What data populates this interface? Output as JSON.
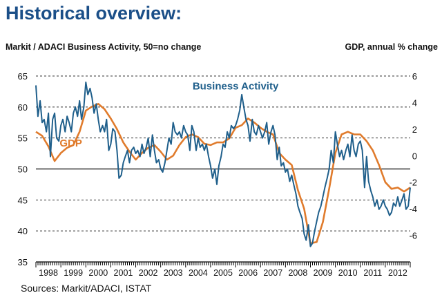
{
  "title": "Historical overview:",
  "left_axis_caption": "Markit / ADACI  Business Activity, 50=no change",
  "right_axis_caption": "GDP, annual % change",
  "source": "Sources: Markit/ADACI, ISTAT",
  "colors": {
    "business_activity": "#1f5f8b",
    "gdp": "#e07b2c",
    "title": "#1b4f88",
    "grid": "#333333"
  },
  "chart_data": {
    "type": "line",
    "title": "Historical overview:",
    "x_range": [
      1998.0,
      2013.0
    ],
    "x_ticks": [
      "1998",
      "1999",
      "2000",
      "2001",
      "2002",
      "2003",
      "2004",
      "2005",
      "2006",
      "2007",
      "2008",
      "2009",
      "2010",
      "2011",
      "2012"
    ],
    "left_axis": {
      "label": "Markit / ADACI  Business Activity, 50=no change",
      "range": [
        35,
        65
      ],
      "ticks": [
        "35",
        "40",
        "45",
        "50",
        "55",
        "60",
        "65"
      ]
    },
    "right_axis": {
      "label": "GDP, annual % change",
      "range": [
        -8,
        6
      ],
      "ticks": [
        "-6",
        "-4",
        "-2",
        "0",
        "2",
        "4",
        "6"
      ]
    },
    "series": [
      {
        "name": "Business Activity",
        "label": "Business Activity",
        "axis": "left",
        "points": [
          [
            1998.0,
            63.5
          ],
          [
            1998.08,
            58.5
          ],
          [
            1998.17,
            61.0
          ],
          [
            1998.25,
            57.5
          ],
          [
            1998.33,
            58.0
          ],
          [
            1998.42,
            56.0
          ],
          [
            1998.5,
            59.0
          ],
          [
            1998.58,
            52.0
          ],
          [
            1998.67,
            58.0
          ],
          [
            1998.75,
            59.0
          ],
          [
            1998.83,
            55.0
          ],
          [
            1998.92,
            54.5
          ],
          [
            1999.0,
            57.0
          ],
          [
            1999.08,
            58.0
          ],
          [
            1999.17,
            56.0
          ],
          [
            1999.25,
            58.5
          ],
          [
            1999.33,
            57.5
          ],
          [
            1999.42,
            56.0
          ],
          [
            1999.5,
            59.0
          ],
          [
            1999.58,
            60.0
          ],
          [
            1999.67,
            58.5
          ],
          [
            1999.75,
            61.0
          ],
          [
            1999.83,
            58.0
          ],
          [
            1999.92,
            60.0
          ],
          [
            2000.0,
            64.0
          ],
          [
            2000.08,
            62.0
          ],
          [
            2000.17,
            63.0
          ],
          [
            2000.25,
            61.5
          ],
          [
            2000.33,
            59.0
          ],
          [
            2000.42,
            60.5
          ],
          [
            2000.5,
            58.0
          ],
          [
            2000.58,
            56.0
          ],
          [
            2000.67,
            57.0
          ],
          [
            2000.75,
            56.0
          ],
          [
            2000.83,
            58.0
          ],
          [
            2000.92,
            53.0
          ],
          [
            2001.0,
            54.0
          ],
          [
            2001.08,
            56.5
          ],
          [
            2001.17,
            56.0
          ],
          [
            2001.25,
            53.0
          ],
          [
            2001.33,
            48.5
          ],
          [
            2001.42,
            49.0
          ],
          [
            2001.5,
            51.0
          ],
          [
            2001.58,
            52.0
          ],
          [
            2001.67,
            53.0
          ],
          [
            2001.75,
            51.0
          ],
          [
            2001.83,
            53.0
          ],
          [
            2001.92,
            53.5
          ],
          [
            2002.0,
            52.5
          ],
          [
            2002.08,
            53.0
          ],
          [
            2002.17,
            52.0
          ],
          [
            2002.25,
            54.0
          ],
          [
            2002.33,
            52.5
          ],
          [
            2002.42,
            53.5
          ],
          [
            2002.5,
            55.0
          ],
          [
            2002.58,
            52.0
          ],
          [
            2002.67,
            55.5
          ],
          [
            2002.75,
            53.0
          ],
          [
            2002.83,
            51.0
          ],
          [
            2002.92,
            51.5
          ],
          [
            2003.0,
            50.0
          ],
          [
            2003.08,
            49.5
          ],
          [
            2003.17,
            51.0
          ],
          [
            2003.25,
            53.0
          ],
          [
            2003.33,
            55.0
          ],
          [
            2003.42,
            54.0
          ],
          [
            2003.5,
            57.5
          ],
          [
            2003.58,
            56.0
          ],
          [
            2003.67,
            55.5
          ],
          [
            2003.75,
            56.0
          ],
          [
            2003.83,
            55.0
          ],
          [
            2003.92,
            57.0
          ],
          [
            2004.0,
            56.0
          ],
          [
            2004.08,
            55.5
          ],
          [
            2004.17,
            53.0
          ],
          [
            2004.25,
            57.0
          ],
          [
            2004.33,
            56.0
          ],
          [
            2004.42,
            53.0
          ],
          [
            2004.5,
            55.0
          ],
          [
            2004.58,
            53.5
          ],
          [
            2004.67,
            54.0
          ],
          [
            2004.75,
            53.0
          ],
          [
            2004.83,
            54.0
          ],
          [
            2004.92,
            52.0
          ],
          [
            2005.0,
            50.5
          ],
          [
            2005.08,
            48.5
          ],
          [
            2005.17,
            50.0
          ],
          [
            2005.25,
            47.5
          ],
          [
            2005.33,
            50.5
          ],
          [
            2005.42,
            52.0
          ],
          [
            2005.5,
            54.0
          ],
          [
            2005.58,
            53.5
          ],
          [
            2005.67,
            56.0
          ],
          [
            2005.75,
            55.0
          ],
          [
            2005.83,
            57.0
          ],
          [
            2005.92,
            56.5
          ],
          [
            2006.0,
            57.0
          ],
          [
            2006.08,
            58.0
          ],
          [
            2006.17,
            59.5
          ],
          [
            2006.25,
            62.0
          ],
          [
            2006.33,
            60.0
          ],
          [
            2006.42,
            58.0
          ],
          [
            2006.5,
            57.0
          ],
          [
            2006.58,
            54.5
          ],
          [
            2006.67,
            58.0
          ],
          [
            2006.75,
            56.0
          ],
          [
            2006.83,
            55.5
          ],
          [
            2006.92,
            57.0
          ],
          [
            2007.0,
            56.0
          ],
          [
            2007.08,
            55.0
          ],
          [
            2007.17,
            56.0
          ],
          [
            2007.25,
            57.5
          ],
          [
            2007.33,
            54.0
          ],
          [
            2007.42,
            56.0
          ],
          [
            2007.5,
            57.0
          ],
          [
            2007.58,
            55.5
          ],
          [
            2007.67,
            51.5
          ],
          [
            2007.75,
            53.5
          ],
          [
            2007.83,
            50.5
          ],
          [
            2007.92,
            51.0
          ],
          [
            2008.0,
            49.5
          ],
          [
            2008.08,
            50.0
          ],
          [
            2008.17,
            48.0
          ],
          [
            2008.25,
            49.0
          ],
          [
            2008.33,
            47.5
          ],
          [
            2008.42,
            46.0
          ],
          [
            2008.5,
            44.0
          ],
          [
            2008.58,
            43.0
          ],
          [
            2008.67,
            42.0
          ],
          [
            2008.75,
            39.5
          ],
          [
            2008.83,
            38.5
          ],
          [
            2008.92,
            41.0
          ],
          [
            2009.0,
            37.5
          ],
          [
            2009.08,
            38.0
          ],
          [
            2009.17,
            40.0
          ],
          [
            2009.25,
            41.5
          ],
          [
            2009.33,
            43.0
          ],
          [
            2009.42,
            44.0
          ],
          [
            2009.5,
            45.5
          ],
          [
            2009.58,
            47.0
          ],
          [
            2009.67,
            48.5
          ],
          [
            2009.75,
            50.0
          ],
          [
            2009.83,
            53.0
          ],
          [
            2009.92,
            51.0
          ],
          [
            2010.0,
            56.0
          ],
          [
            2010.08,
            54.0
          ],
          [
            2010.17,
            52.0
          ],
          [
            2010.25,
            53.0
          ],
          [
            2010.33,
            51.5
          ],
          [
            2010.42,
            53.0
          ],
          [
            2010.5,
            54.0
          ],
          [
            2010.58,
            52.0
          ],
          [
            2010.67,
            55.5
          ],
          [
            2010.75,
            53.0
          ],
          [
            2010.83,
            52.0
          ],
          [
            2010.92,
            54.0
          ],
          [
            2011.0,
            54.5
          ],
          [
            2011.08,
            53.0
          ],
          [
            2011.17,
            47.0
          ],
          [
            2011.25,
            52.0
          ],
          [
            2011.33,
            48.0
          ],
          [
            2011.42,
            46.5
          ],
          [
            2011.5,
            45.5
          ],
          [
            2011.58,
            44.0
          ],
          [
            2011.67,
            45.0
          ],
          [
            2011.75,
            43.5
          ],
          [
            2011.83,
            44.0
          ],
          [
            2011.92,
            45.0
          ],
          [
            2012.0,
            44.0
          ],
          [
            2012.08,
            43.5
          ],
          [
            2012.17,
            42.5
          ],
          [
            2012.25,
            43.0
          ],
          [
            2012.33,
            44.5
          ],
          [
            2012.42,
            44.0
          ],
          [
            2012.5,
            45.5
          ],
          [
            2012.58,
            44.0
          ],
          [
            2012.67,
            45.0
          ],
          [
            2012.75,
            46.0
          ],
          [
            2012.83,
            43.5
          ],
          [
            2012.92,
            44.0
          ],
          [
            2013.0,
            47.0
          ]
        ]
      },
      {
        "name": "GDP",
        "label": "GDP",
        "axis": "right",
        "points": [
          [
            1998.0,
            1.8
          ],
          [
            1998.25,
            1.5
          ],
          [
            1998.5,
            0.7
          ],
          [
            1998.75,
            -0.4
          ],
          [
            1999.0,
            0.2
          ],
          [
            1999.25,
            0.6
          ],
          [
            1999.5,
            0.8
          ],
          [
            1999.75,
            1.8
          ],
          [
            2000.0,
            3.4
          ],
          [
            2000.25,
            3.7
          ],
          [
            2000.5,
            3.9
          ],
          [
            2000.75,
            3.5
          ],
          [
            2001.0,
            2.8
          ],
          [
            2001.25,
            2.0
          ],
          [
            2001.5,
            1.0
          ],
          [
            2001.75,
            0.3
          ],
          [
            2002.0,
            -0.3
          ],
          [
            2002.25,
            0.2
          ],
          [
            2002.5,
            0.6
          ],
          [
            2002.75,
            0.8
          ],
          [
            2003.0,
            0.3
          ],
          [
            2003.25,
            -0.3
          ],
          [
            2003.5,
            0.0
          ],
          [
            2003.75,
            0.8
          ],
          [
            2004.0,
            1.4
          ],
          [
            2004.25,
            1.6
          ],
          [
            2004.5,
            1.4
          ],
          [
            2004.75,
            0.9
          ],
          [
            2005.0,
            0.8
          ],
          [
            2005.25,
            1.0
          ],
          [
            2005.5,
            1.0
          ],
          [
            2005.75,
            1.3
          ],
          [
            2006.0,
            2.1
          ],
          [
            2006.25,
            2.3
          ],
          [
            2006.5,
            2.8
          ],
          [
            2006.75,
            2.5
          ],
          [
            2007.0,
            2.1
          ],
          [
            2007.25,
            1.8
          ],
          [
            2007.5,
            1.6
          ],
          [
            2007.75,
            0.2
          ],
          [
            2008.0,
            -0.3
          ],
          [
            2008.25,
            -0.7
          ],
          [
            2008.5,
            -2.6
          ],
          [
            2008.75,
            -4.0
          ],
          [
            2009.0,
            -6.6
          ],
          [
            2009.25,
            -6.5
          ],
          [
            2009.5,
            -5.0
          ],
          [
            2009.75,
            -2.5
          ],
          [
            2010.0,
            0.2
          ],
          [
            2010.25,
            1.6
          ],
          [
            2010.5,
            1.8
          ],
          [
            2010.75,
            1.6
          ],
          [
            2011.0,
            1.6
          ],
          [
            2011.25,
            1.1
          ],
          [
            2011.5,
            0.4
          ],
          [
            2011.75,
            -0.7
          ],
          [
            2012.0,
            -2.0
          ],
          [
            2012.25,
            -2.5
          ],
          [
            2012.5,
            -2.4
          ],
          [
            2012.75,
            -2.7
          ],
          [
            2013.0,
            -2.4
          ]
        ]
      }
    ]
  }
}
